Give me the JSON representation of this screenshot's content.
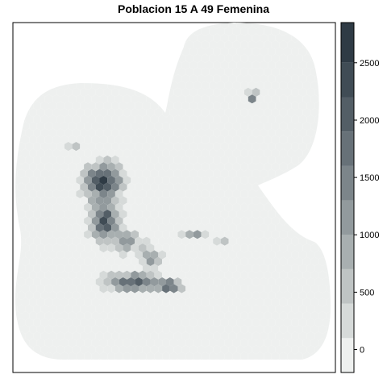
{
  "title": "Poblacion 15 A 49 Femenina",
  "legend": {
    "min": -200,
    "max": 2850,
    "breaks": [
      -200,
      100,
      400,
      700,
      1000,
      1300,
      1600,
      1900,
      2200,
      2500,
      2850
    ],
    "colors": [
      "#eef0ef",
      "#d6dad9",
      "#bfc4c4",
      "#a8afb0",
      "#929a9d",
      "#7c858a",
      "#677178",
      "#535e66",
      "#404c55",
      "#2f3b45"
    ],
    "ticks": [
      {
        "value": 0,
        "label": "0"
      },
      {
        "value": 500,
        "label": "500"
      },
      {
        "value": 1000,
        "label": "1000"
      },
      {
        "value": 1500,
        "label": "1500"
      },
      {
        "value": 2000,
        "label": "2000"
      },
      {
        "value": 2500,
        "label": "2500"
      }
    ]
  }
}
